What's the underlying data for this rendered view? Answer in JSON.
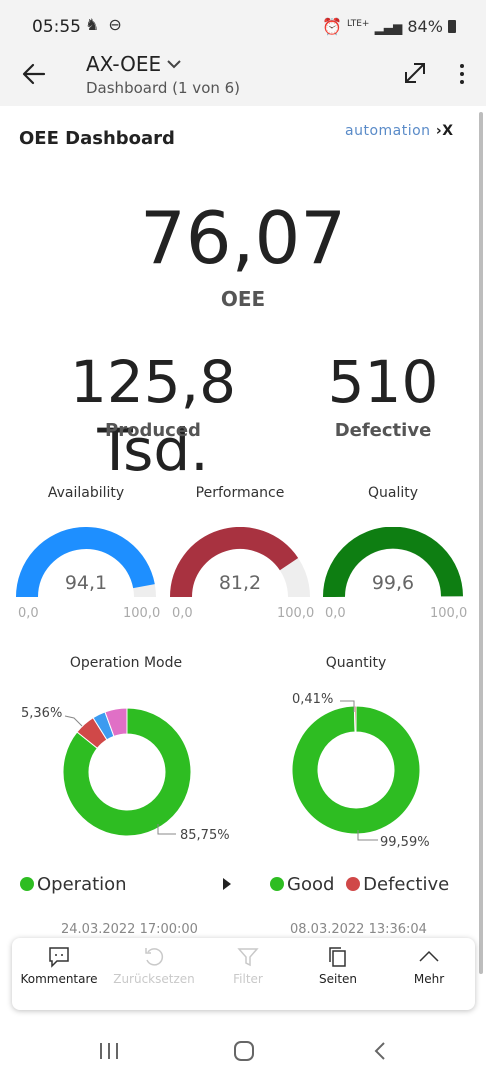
{
  "status_bar": {
    "time": "05:55",
    "battery": "84%",
    "network": "LTE+"
  },
  "header": {
    "title": "AX-OEE",
    "subtitle": "Dashboard (1 von 6)"
  },
  "dashboard": {
    "title": "OEE Dashboard",
    "logo_text": "automation",
    "oee": {
      "value": "76,07",
      "label": "OEE"
    },
    "produced": {
      "value": "125,8 Tsd.",
      "label": "Produced"
    },
    "defective": {
      "value": "510",
      "label": "Defective"
    },
    "gauges": [
      {
        "title": "Availability",
        "value": "94,1",
        "fraction": 0.941,
        "min": "0,0",
        "max": "100,0",
        "color": "#1e8fff"
      },
      {
        "title": "Performance",
        "value": "81,2",
        "fraction": 0.812,
        "min": "0,0",
        "max": "100,0",
        "color": "#a83240"
      },
      {
        "title": "Quality",
        "value": "99,6",
        "fraction": 0.996,
        "min": "0,0",
        "max": "100,0",
        "color": "#0e7e12"
      }
    ],
    "operation_mode": {
      "title": "Operation Mode",
      "label_small": "5,36%",
      "label_large": "85,75%",
      "legend": "Operation",
      "timestamp": "24.03.2022 17:00:00"
    },
    "quantity": {
      "title": "Quantity",
      "label_small": "0,41%",
      "label_large": "99,59%",
      "legend_good": "Good",
      "legend_defective": "Defective",
      "timestamp": "08.03.2022 13:36:04"
    }
  },
  "chart_data": [
    {
      "type": "pie",
      "title": "Operation Mode",
      "slices": [
        {
          "name": "Operation",
          "value": 85.75,
          "color": "#2ebd22"
        },
        {
          "name": "",
          "value": 5.36,
          "color": "#d04848"
        },
        {
          "name": "",
          "value": 3.3,
          "color": "#3c9bf0"
        },
        {
          "name": "",
          "value": 5.59,
          "color": "#e070c6"
        }
      ]
    },
    {
      "type": "pie",
      "title": "Quantity",
      "slices": [
        {
          "name": "Good",
          "value": 99.59,
          "color": "#2ebd22"
        },
        {
          "name": "Defective",
          "value": 0.41,
          "color": "#d04848"
        }
      ]
    }
  ],
  "colors": {
    "good": "#2ebd22",
    "defective": "#d04848",
    "track": "#eeeeee"
  },
  "toolbar": {
    "items": [
      {
        "label": "Kommentare",
        "icon": "comment-icon",
        "enabled": true
      },
      {
        "label": "Zurücksetzen",
        "icon": "reset-icon",
        "enabled": false
      },
      {
        "label": "Filter",
        "icon": "filter-icon",
        "enabled": false
      },
      {
        "label": "Seiten",
        "icon": "pages-icon",
        "enabled": true
      },
      {
        "label": "Mehr",
        "icon": "chevron-up-icon",
        "enabled": true
      }
    ]
  }
}
